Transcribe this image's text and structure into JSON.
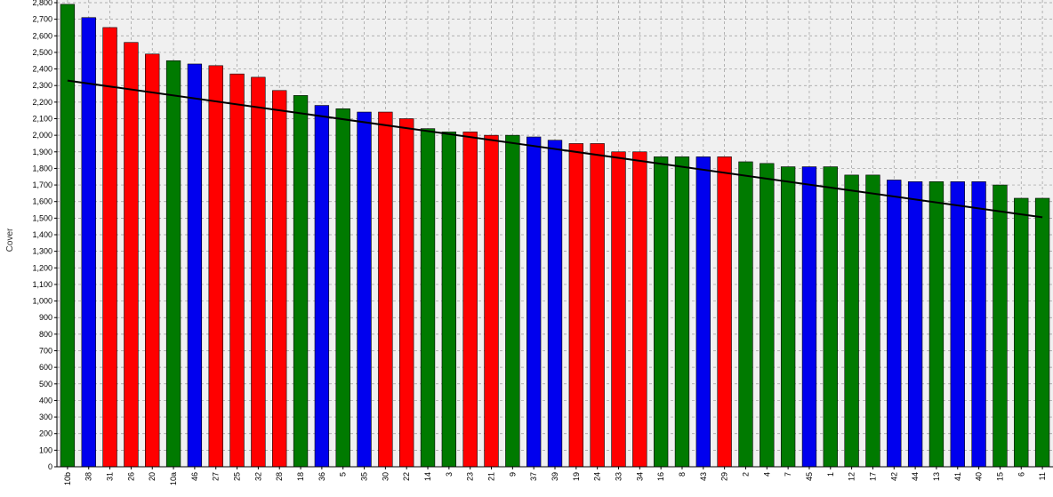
{
  "chart_data": {
    "type": "bar",
    "title": "",
    "xlabel": "",
    "ylabel": "Cover",
    "ylim": [
      0,
      2800
    ],
    "ytick_step": 100,
    "grid": true,
    "legend": "none",
    "categories": [
      "10b",
      "38",
      "31",
      "26",
      "20",
      "10a",
      "46",
      "27",
      "25",
      "32",
      "28",
      "18",
      "36",
      "5",
      "35",
      "30",
      "22",
      "14",
      "3",
      "23",
      "21",
      "9",
      "37",
      "39",
      "19",
      "24",
      "33",
      "34",
      "16",
      "8",
      "43",
      "29",
      "2",
      "4",
      "7",
      "45",
      "1",
      "12",
      "17",
      "42",
      "44",
      "13",
      "41",
      "40",
      "15",
      "6",
      "11"
    ],
    "values": [
      2790,
      2710,
      2650,
      2560,
      2490,
      2450,
      2430,
      2420,
      2370,
      2350,
      2270,
      2240,
      2180,
      2160,
      2140,
      2140,
      2100,
      2040,
      2020,
      2020,
      2000,
      2000,
      1990,
      1970,
      1950,
      1950,
      1900,
      1900,
      1870,
      1870,
      1870,
      1870,
      1840,
      1830,
      1810,
      1810,
      1810,
      1760,
      1760,
      1730,
      1720,
      1720,
      1720,
      1720,
      1700,
      1620,
      1620
    ],
    "bar_colors": [
      "green",
      "blue",
      "red",
      "red",
      "red",
      "green",
      "blue",
      "red",
      "red",
      "red",
      "red",
      "green",
      "blue",
      "green",
      "blue",
      "red",
      "red",
      "green",
      "green",
      "red",
      "red",
      "green",
      "blue",
      "blue",
      "red",
      "red",
      "red",
      "red",
      "green",
      "green",
      "blue",
      "red",
      "green",
      "green",
      "green",
      "blue",
      "green",
      "green",
      "green",
      "blue",
      "blue",
      "green",
      "blue",
      "blue",
      "green",
      "green",
      "green"
    ],
    "color_map": {
      "green": "#007a00",
      "blue": "#0000ee",
      "red": "#ff0000"
    },
    "trendline": {
      "start": 2330,
      "end": 1505,
      "color": "#000000"
    }
  }
}
